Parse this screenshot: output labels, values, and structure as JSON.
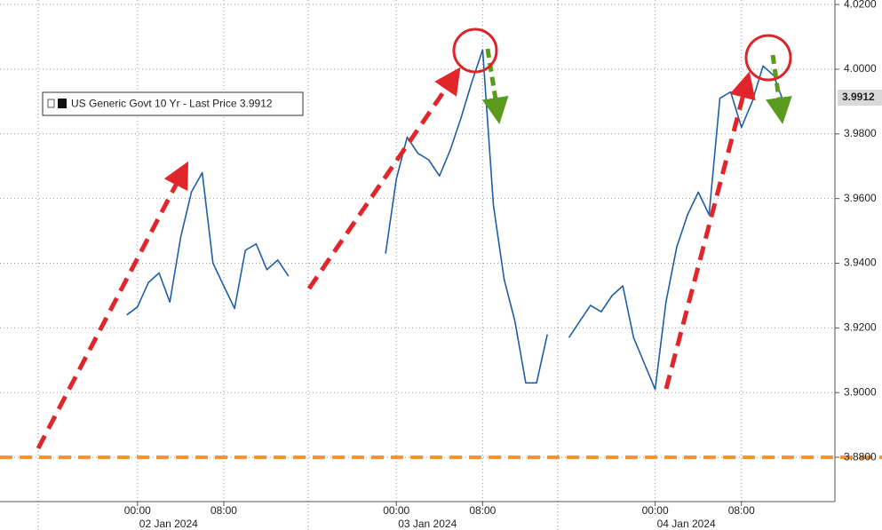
{
  "chart_data": {
    "type": "line",
    "series": [
      {
        "name": "US Generic Govt 10 Yr - Last Price",
        "color": "#1c5fa8",
        "x": [
          "2024-01-01T23:00",
          "2024-01-02T00:00",
          "2024-01-02T01:00",
          "2024-01-02T02:00",
          "2024-01-02T03:00",
          "2024-01-02T04:00",
          "2024-01-02T05:00",
          "2024-01-02T06:00",
          "2024-01-02T07:00",
          "2024-01-02T08:00",
          "2024-01-02T09:00",
          "2024-01-02T10:00",
          "2024-01-02T11:00",
          "2024-01-02T12:00",
          "2024-01-02T13:00",
          "2024-01-02T14:00",
          "2024-01-02T18:00",
          "2024-01-02T23:00",
          "2024-01-03T00:00",
          "2024-01-03T01:00",
          "2024-01-03T02:00",
          "2024-01-03T03:00",
          "2024-01-03T04:00",
          "2024-01-03T05:00",
          "2024-01-03T06:00",
          "2024-01-03T07:00",
          "2024-01-03T08:00",
          "2024-01-03T09:00",
          "2024-01-03T10:00",
          "2024-01-03T11:00",
          "2024-01-03T12:00",
          "2024-01-03T13:00",
          "2024-01-03T14:00",
          "2024-01-03T15:00",
          "2024-01-03T16:00",
          "2024-01-03T17:00",
          "2024-01-03T18:00",
          "2024-01-03T19:00",
          "2024-01-03T20:00",
          "2024-01-03T21:00",
          "2024-01-03T22:00",
          "2024-01-03T23:00",
          "2024-01-04T00:00",
          "2024-01-04T01:00",
          "2024-01-04T02:00",
          "2024-01-04T03:00",
          "2024-01-04T04:00",
          "2024-01-04T05:00",
          "2024-01-04T06:00",
          "2024-01-04T07:00",
          "2024-01-04T08:00",
          "2024-01-04T09:00",
          "2024-01-04T10:00",
          "2024-01-04T11:00",
          "2024-01-04T12:00",
          "2024-01-04T12:30"
        ],
        "values": [
          3.924,
          3.9265,
          3.934,
          3.937,
          3.928,
          3.948,
          3.962,
          3.968,
          3.94,
          3.933,
          3.926,
          3.944,
          3.946,
          3.938,
          3.941,
          3.936,
          null,
          3.943,
          3.966,
          3.979,
          3.974,
          3.972,
          3.967,
          3.975,
          3.985,
          3.996,
          4.006,
          3.958,
          3.935,
          3.922,
          3.903,
          3.903,
          3.918,
          null,
          3.917,
          3.922,
          3.927,
          3.925,
          3.93,
          3.933,
          3.917,
          3.909,
          3.901,
          3.928,
          3.945,
          3.955,
          3.962,
          3.955,
          3.991,
          3.993,
          3.982,
          3.99,
          4.001,
          3.998,
          3.989,
          3.9912
        ]
      }
    ],
    "ylim": [
      3.8663,
      4.0214
    ],
    "yticks": [
      {
        "value": 3.88,
        "label": "3.8800"
      },
      {
        "value": 3.9,
        "label": "3.9000"
      },
      {
        "value": 3.92,
        "label": "3.9200"
      },
      {
        "value": 3.94,
        "label": "3.9400"
      },
      {
        "value": 3.96,
        "label": "3.9600"
      },
      {
        "value": 3.98,
        "label": "3.9800"
      },
      {
        "value": 4.0,
        "label": "4.0000"
      },
      {
        "value": 4.02,
        "label": "4.0200"
      }
    ],
    "xlim": [
      "2024-01-01T11:15",
      "2024-01-04T16:40"
    ],
    "xticks": [
      {
        "value": "2024-01-02T00:00",
        "label": "00:00"
      },
      {
        "value": "2024-01-02T08:00",
        "label": "08:00"
      },
      {
        "value": "2024-01-03T00:00",
        "label": "00:00"
      },
      {
        "value": "2024-01-03T08:00",
        "label": "08:00"
      },
      {
        "value": "2024-01-04T00:00",
        "label": "00:00"
      },
      {
        "value": "2024-01-04T08:00",
        "label": "08:00"
      }
    ],
    "xdates": [
      {
        "value": "2024-01-02T00:00",
        "label": "02 Jan 2024"
      },
      {
        "value": "2024-01-03T00:00",
        "label": "03 Jan 2024"
      },
      {
        "value": "2024-01-04T00:00",
        "label": "04 Jan 2024"
      }
    ],
    "hlines": [
      {
        "value": 3.88,
        "color": "#f0962c"
      }
    ],
    "grid": true
  }
}
